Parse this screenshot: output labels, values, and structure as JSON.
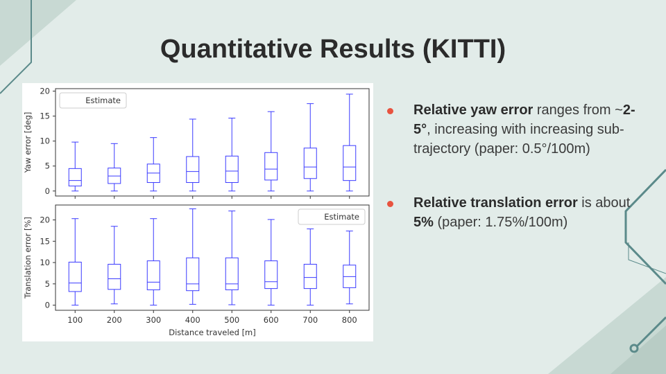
{
  "slide": {
    "title": "Quantitative Results (KITTI)",
    "bullets": [
      {
        "parts": [
          {
            "text": "Relative yaw error",
            "bold": true
          },
          {
            "text": " ranges from ~",
            "bold": false
          },
          {
            "text": "2-5°",
            "bold": true
          },
          {
            "text": ", increasing with increasing sub-trajectory (paper: 0.5°/100m)",
            "bold": false
          }
        ]
      },
      {
        "parts": [
          {
            "text": "Relative translation error",
            "bold": true
          },
          {
            "text": " is about ",
            "bold": false
          },
          {
            "text": "5%",
            "bold": true
          },
          {
            "text": " (paper: 1.75%/100m)",
            "bold": false
          }
        ]
      }
    ]
  },
  "colors": {
    "background": "#e2ece9",
    "accent_dot": "#e8533f",
    "decoration_line": "#5b8a8a",
    "decoration_fill": "#c8d9d3",
    "box_color": "#3a3aff"
  },
  "chart_data": [
    {
      "type": "box",
      "ylabel": "Yaw error [deg]",
      "xlabel": "",
      "legend": "Estimate",
      "legend_position": "top-left",
      "ylim": [
        -1,
        20.5
      ],
      "yticks": [
        0,
        5,
        10,
        15,
        20
      ],
      "categories": [
        "100",
        "200",
        "300",
        "400",
        "500",
        "600",
        "700",
        "800"
      ],
      "show_xticklabels": false,
      "boxes": [
        {
          "min": 0.0,
          "q1": 1.0,
          "median": 2.1,
          "q3": 4.5,
          "max": 9.8
        },
        {
          "min": 0.0,
          "q1": 1.5,
          "median": 3.0,
          "q3": 4.6,
          "max": 9.5
        },
        {
          "min": 0.0,
          "q1": 1.7,
          "median": 3.6,
          "q3": 5.4,
          "max": 10.7
        },
        {
          "min": 0.0,
          "q1": 1.7,
          "median": 3.9,
          "q3": 6.9,
          "max": 14.4
        },
        {
          "min": 0.0,
          "q1": 1.7,
          "median": 4.0,
          "q3": 7.0,
          "max": 14.6
        },
        {
          "min": 0.0,
          "q1": 2.2,
          "median": 4.4,
          "q3": 7.7,
          "max": 15.9
        },
        {
          "min": 0.0,
          "q1": 2.5,
          "median": 4.8,
          "q3": 8.6,
          "max": 17.5
        },
        {
          "min": 0.0,
          "q1": 2.1,
          "median": 4.8,
          "q3": 9.1,
          "max": 19.4
        }
      ]
    },
    {
      "type": "box",
      "ylabel": "Translation error [%]",
      "xlabel": "Distance traveled [m]",
      "legend": "Estimate",
      "legend_position": "top-right",
      "ylim": [
        -1.2,
        23.5
      ],
      "yticks": [
        0,
        5,
        10,
        15,
        20
      ],
      "categories": [
        "100",
        "200",
        "300",
        "400",
        "500",
        "600",
        "700",
        "800"
      ],
      "show_xticklabels": true,
      "boxes": [
        {
          "min": 0.0,
          "q1": 3.2,
          "median": 5.2,
          "q3": 10.1,
          "max": 20.3
        },
        {
          "min": 0.3,
          "q1": 3.7,
          "median": 6.2,
          "q3": 9.6,
          "max": 18.5
        },
        {
          "min": 0.0,
          "q1": 3.6,
          "median": 5.4,
          "q3": 10.4,
          "max": 20.3
        },
        {
          "min": 0.2,
          "q1": 3.4,
          "median": 5.0,
          "q3": 11.1,
          "max": 22.6
        },
        {
          "min": 0.1,
          "q1": 3.6,
          "median": 5.0,
          "q3": 11.1,
          "max": 22.1
        },
        {
          "min": 0.0,
          "q1": 3.9,
          "median": 5.5,
          "q3": 10.4,
          "max": 20.1
        },
        {
          "min": 0.0,
          "q1": 3.9,
          "median": 6.5,
          "q3": 9.6,
          "max": 17.9
        },
        {
          "min": 0.3,
          "q1": 4.1,
          "median": 6.7,
          "q3": 9.4,
          "max": 17.4
        }
      ]
    }
  ]
}
